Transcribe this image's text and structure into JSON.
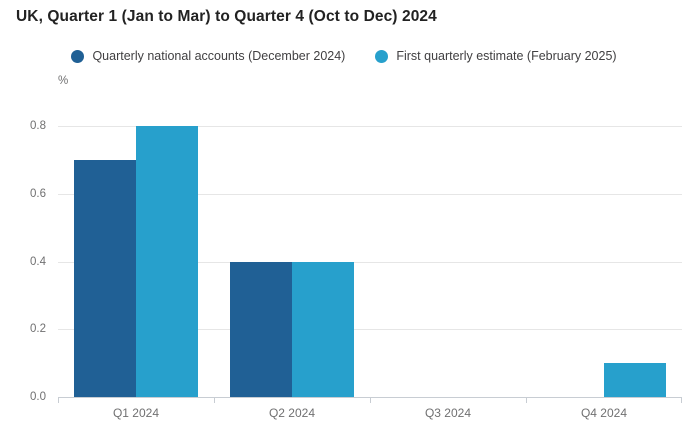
{
  "title": "UK, Quarter 1 (Jan to Mar) to Quarter 4 (Oct to Dec) 2024",
  "unit_label": "%",
  "legend": {
    "items": [
      {
        "label": "Quarterly national accounts (December 2024)",
        "color": "#206095"
      },
      {
        "label": "First quarterly estimate (February 2025)",
        "color": "#27a0cc"
      }
    ]
  },
  "chart_data": {
    "type": "bar",
    "title": "UK, Quarter 1 (Jan to Mar) to Quarter 4 (Oct to Dec) 2024",
    "categories": [
      "Q1 2024",
      "Q2 2024",
      "Q3 2024",
      "Q4 2024"
    ],
    "series": [
      {
        "name": "Quarterly national accounts (December 2024)",
        "color": "#206095",
        "values": [
          0.7,
          0.4,
          0.0,
          0.0
        ]
      },
      {
        "name": "First quarterly estimate (February 2025)",
        "color": "#27a0cc",
        "values": [
          0.8,
          0.4,
          0.0,
          0.1
        ]
      }
    ],
    "xlabel": "",
    "ylabel": "%",
    "ylim": [
      0,
      0.8
    ],
    "yticks": [
      "0.0",
      "0.2",
      "0.4",
      "0.6",
      "0.8"
    ],
    "grid": true,
    "legend_position": "top"
  },
  "colors": {
    "grid": "#e6e6e6",
    "axis": "#c8cdd3",
    "tick_label": "#707071",
    "title": "#222222",
    "legend_text": "#414042",
    "background": "#ffffff"
  }
}
